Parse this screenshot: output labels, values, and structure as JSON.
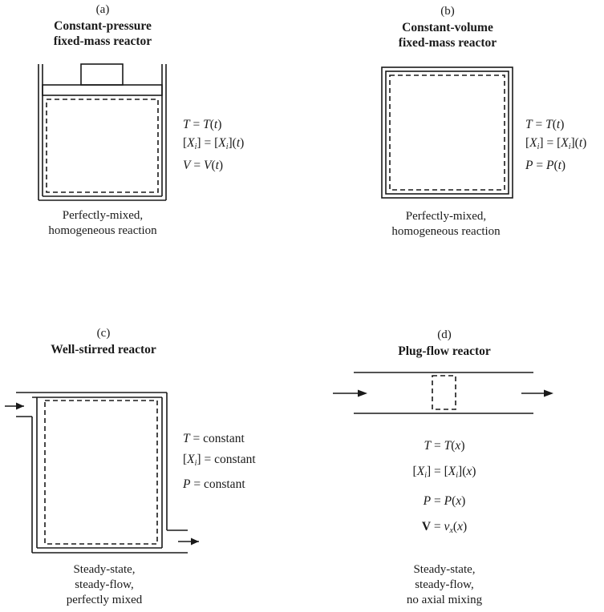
{
  "panels": {
    "a": {
      "letter": "(a)",
      "title_line1": "Constant-pressure",
      "title_line2": "fixed-mass reactor",
      "equations": {
        "t_lhs": "T",
        "t_rhs_fn": "T",
        "t_arg": "t",
        "x_sym": "X",
        "x_sub": "i",
        "x_arg": "t",
        "third_lhs": "V",
        "third_fn": "V",
        "third_arg": "t"
      },
      "caption_line1": "Perfectly-mixed,",
      "caption_line2": "homogeneous reaction"
    },
    "b": {
      "letter": "(b)",
      "title_line1": "Constant-volume",
      "title_line2": "fixed-mass reactor",
      "equations": {
        "t_lhs": "T",
        "t_rhs_fn": "T",
        "t_arg": "t",
        "x_sym": "X",
        "x_sub": "i",
        "x_arg": "t",
        "third_lhs": "P",
        "third_fn": "P",
        "third_arg": "t"
      },
      "caption_line1": "Perfectly-mixed,",
      "caption_line2": "homogeneous reaction"
    },
    "c": {
      "letter": "(c)",
      "title": "Well-stirred reactor",
      "equations": {
        "t_lhs": "T",
        "x_sym": "X",
        "x_sub": "i",
        "p_lhs": "P",
        "rhs": "constant"
      },
      "caption_line1": "Steady-state,",
      "caption_line2": "steady-flow,",
      "caption_line3": "perfectly mixed"
    },
    "d": {
      "letter": "(d)",
      "title": "Plug-flow reactor",
      "equations": {
        "t_lhs": "T",
        "t_fn": "T",
        "arg": "x",
        "x_sym": "X",
        "x_sub": "i",
        "p_lhs": "P",
        "p_fn": "P",
        "v_lhs": "V",
        "v_fn": "v",
        "v_sub": "x"
      },
      "caption_line1": "Steady-state,",
      "caption_line2": "steady-flow,",
      "caption_line3": "no axial mixing"
    }
  }
}
